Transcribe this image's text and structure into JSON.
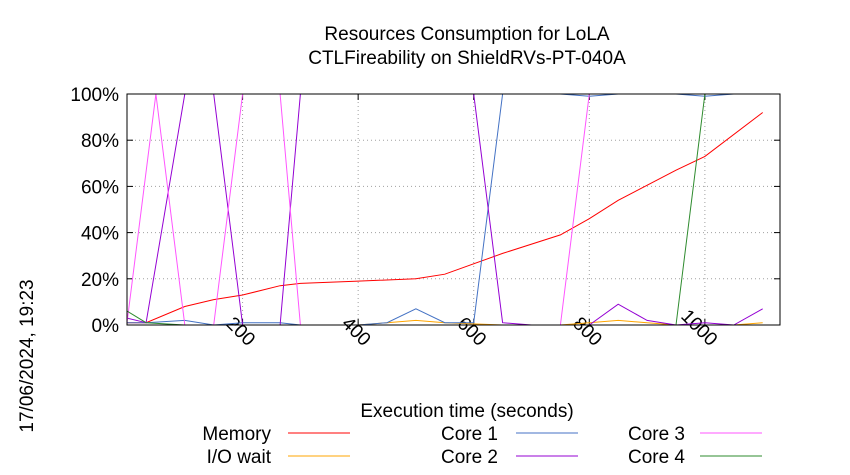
{
  "chart_data": {
    "type": "line",
    "title": "Resources Consumption for LoLA",
    "subtitle": "CTLFireability on ShieldRVs-PT-040A",
    "xlabel": "Execution time (seconds)",
    "ylabel": "",
    "side_label": "17/06/2024, 19:23",
    "xlim": [
      0,
      1130
    ],
    "ylim": [
      0,
      100
    ],
    "x_ticks": [
      "200",
      "400",
      "600",
      "800",
      "1000"
    ],
    "x_tick_values": [
      200,
      400,
      600,
      800,
      1000
    ],
    "y_ticks": [
      "0%",
      "20%",
      "40%",
      "60%",
      "80%",
      "100%"
    ],
    "y_tick_values": [
      0,
      20,
      40,
      60,
      80,
      100
    ],
    "grid": true,
    "legend_position": "bottom",
    "series": [
      {
        "name": "Memory",
        "color": "#ff0000",
        "x": [
          0,
          17,
          33,
          100,
          150,
          200,
          265,
          300,
          400,
          500,
          550,
          650,
          750,
          800,
          850,
          950,
          1000,
          1100
        ],
        "y": [
          1,
          1,
          1,
          8,
          11,
          13,
          17,
          18,
          19,
          20,
          22,
          31,
          39,
          46,
          54,
          67,
          73,
          92
        ]
      },
      {
        "name": "I/O wait",
        "color": "#ffa500",
        "x": [
          0,
          33,
          100,
          200,
          265,
          300,
          400,
          450,
          500,
          550,
          650,
          750,
          800,
          850,
          900,
          950,
          1000,
          1050,
          1100
        ],
        "y": [
          0,
          0,
          0,
          0,
          0,
          0,
          0,
          1,
          2,
          1,
          0,
          0,
          1,
          2,
          1,
          0,
          0,
          0,
          1
        ]
      },
      {
        "name": "Core 1",
        "color": "#4472c4",
        "x": [
          0,
          33,
          100,
          150,
          200,
          265,
          300,
          400,
          450,
          500,
          550,
          600,
          650,
          750,
          800,
          850,
          950,
          1000,
          1050,
          1100
        ],
        "y": [
          1,
          1,
          2,
          0,
          1,
          1,
          0,
          0,
          1,
          7,
          1,
          1,
          100,
          100,
          99,
          100,
          100,
          99,
          100,
          100
        ]
      },
      {
        "name": "Core 2",
        "color": "#9400d3",
        "x": [
          0,
          33,
          100,
          150,
          200,
          265,
          300,
          400,
          500,
          600,
          650,
          700,
          750,
          800,
          850,
          900,
          950,
          1000,
          1050,
          1100
        ],
        "y": [
          3,
          1,
          100,
          100,
          0,
          0,
          100,
          100,
          100,
          100,
          1,
          0,
          0,
          0,
          9,
          2,
          0,
          1,
          0,
          7
        ]
      },
      {
        "name": "Core 3",
        "color": "#ff55ff",
        "x": [
          0,
          50,
          100,
          150,
          200,
          265,
          300,
          400,
          500,
          600,
          650,
          700,
          750,
          800,
          850,
          950,
          1000,
          1050,
          1100
        ],
        "y": [
          1,
          100,
          0,
          0,
          100,
          100,
          0,
          0,
          0,
          0,
          0,
          0,
          0,
          100,
          100,
          100,
          100,
          100,
          100
        ]
      },
      {
        "name": "Core 4",
        "color": "#2e8b2e",
        "x": [
          0,
          33,
          100,
          200,
          300,
          400,
          500,
          600,
          700,
          800,
          900,
          950,
          1000,
          1050,
          1100
        ],
        "y": [
          6,
          1,
          0,
          0,
          0,
          0,
          0,
          0,
          0,
          0,
          0,
          0,
          100,
          100,
          100
        ]
      }
    ]
  }
}
